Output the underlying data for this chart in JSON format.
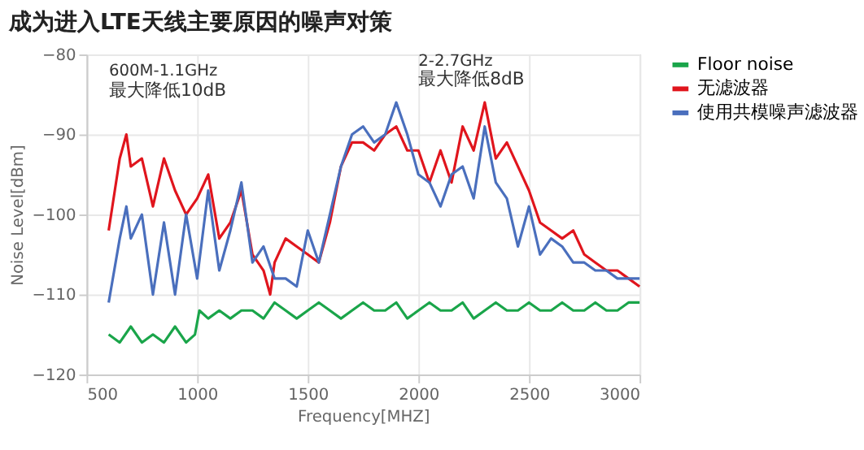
{
  "chart_data": {
    "type": "line",
    "title": "成为进入LTE天线主要原因的噪声对策",
    "xlabel": "Frequency[MHZ]",
    "ylabel": "Noise Level[dBm]",
    "xlim": [
      500,
      3000
    ],
    "xticks": [
      500,
      1000,
      1500,
      2000,
      2500,
      3000
    ],
    "ylim": [
      -120,
      -80
    ],
    "yticks": [
      -120,
      -110,
      -100,
      -90,
      -80
    ],
    "grid": true,
    "legend": "top right",
    "marker": "none",
    "line_style": "solid",
    "annotations": [
      "600M-1.1GHz",
      "最大降低10dB",
      "2-2.7GHz",
      "最大降低8dB"
    ],
    "series": [
      {
        "name": "Floor noise",
        "color": "#1aa54a",
        "x": [
          600,
          650,
          700,
          750,
          800,
          850,
          900,
          950,
          990,
          1010,
          1050,
          1100,
          1150,
          1200,
          1250,
          1300,
          1350,
          1400,
          1450,
          1500,
          1550,
          1600,
          1650,
          1700,
          1750,
          1800,
          1850,
          1900,
          1950,
          2000,
          2050,
          2100,
          2150,
          2200,
          2250,
          2300,
          2350,
          2400,
          2450,
          2500,
          2550,
          2600,
          2650,
          2700,
          2750,
          2800,
          2850,
          2900,
          2950,
          3000
        ],
        "values": [
          -115,
          -116,
          -114,
          -116,
          -115,
          -116,
          -114,
          -116,
          -115,
          -112,
          -113,
          -112,
          -113,
          -112,
          -112,
          -113,
          -111,
          -112,
          -113,
          -112,
          -111,
          -112,
          -113,
          -112,
          -111,
          -112,
          -112,
          -111,
          -113,
          -112,
          -111,
          -112,
          -112,
          -111,
          -113,
          -112,
          -111,
          -112,
          -112,
          -111,
          -112,
          -112,
          -111,
          -112,
          -112,
          -111,
          -112,
          -112,
          -111,
          -111
        ]
      },
      {
        "name": "无滤波器",
        "color": "#e0151d",
        "x": [
          600,
          650,
          680,
          700,
          750,
          800,
          850,
          900,
          950,
          1000,
          1050,
          1100,
          1150,
          1200,
          1250,
          1300,
          1330,
          1350,
          1400,
          1450,
          1500,
          1550,
          1600,
          1650,
          1700,
          1750,
          1800,
          1850,
          1900,
          1950,
          2000,
          2050,
          2100,
          2150,
          2200,
          2250,
          2300,
          2350,
          2400,
          2450,
          2500,
          2550,
          2600,
          2650,
          2700,
          2750,
          2800,
          2850,
          2900,
          2950,
          3000
        ],
        "values": [
          -102,
          -93,
          -90,
          -94,
          -93,
          -99,
          -93,
          -97,
          -100,
          -98,
          -95,
          -103,
          -101,
          -97,
          -105,
          -107,
          -110,
          -106,
          -103,
          -104,
          -105,
          -106,
          -101,
          -94,
          -91,
          -91,
          -92,
          -90,
          -89,
          -92,
          -92,
          -96,
          -92,
          -96,
          -89,
          -92,
          -86,
          -93,
          -91,
          -94,
          -97,
          -101,
          -102,
          -103,
          -102,
          -105,
          -106,
          -107,
          -107,
          -108,
          -109
        ]
      },
      {
        "name": "使用共模噪声滤波器",
        "color": "#4a6fbd",
        "x": [
          600,
          650,
          680,
          700,
          750,
          800,
          850,
          900,
          950,
          1000,
          1050,
          1100,
          1150,
          1200,
          1250,
          1300,
          1350,
          1400,
          1450,
          1500,
          1550,
          1600,
          1650,
          1700,
          1750,
          1800,
          1850,
          1900,
          1950,
          2000,
          2050,
          2100,
          2150,
          2200,
          2250,
          2300,
          2350,
          2400,
          2450,
          2500,
          2550,
          2600,
          2650,
          2700,
          2750,
          2800,
          2850,
          2900,
          2950,
          3000
        ],
        "values": [
          -111,
          -103,
          -99,
          -103,
          -100,
          -110,
          -101,
          -110,
          -100,
          -108,
          -97,
          -107,
          -102,
          -96,
          -106,
          -104,
          -108,
          -108,
          -109,
          -102,
          -106,
          -100,
          -94,
          -90,
          -89,
          -91,
          -90,
          -86,
          -90,
          -95,
          -96,
          -99,
          -95,
          -94,
          -98,
          -89,
          -96,
          -98,
          -104,
          -99,
          -105,
          -103,
          -104,
          -106,
          -106,
          -107,
          -107,
          -108,
          -108,
          -108
        ]
      }
    ]
  }
}
